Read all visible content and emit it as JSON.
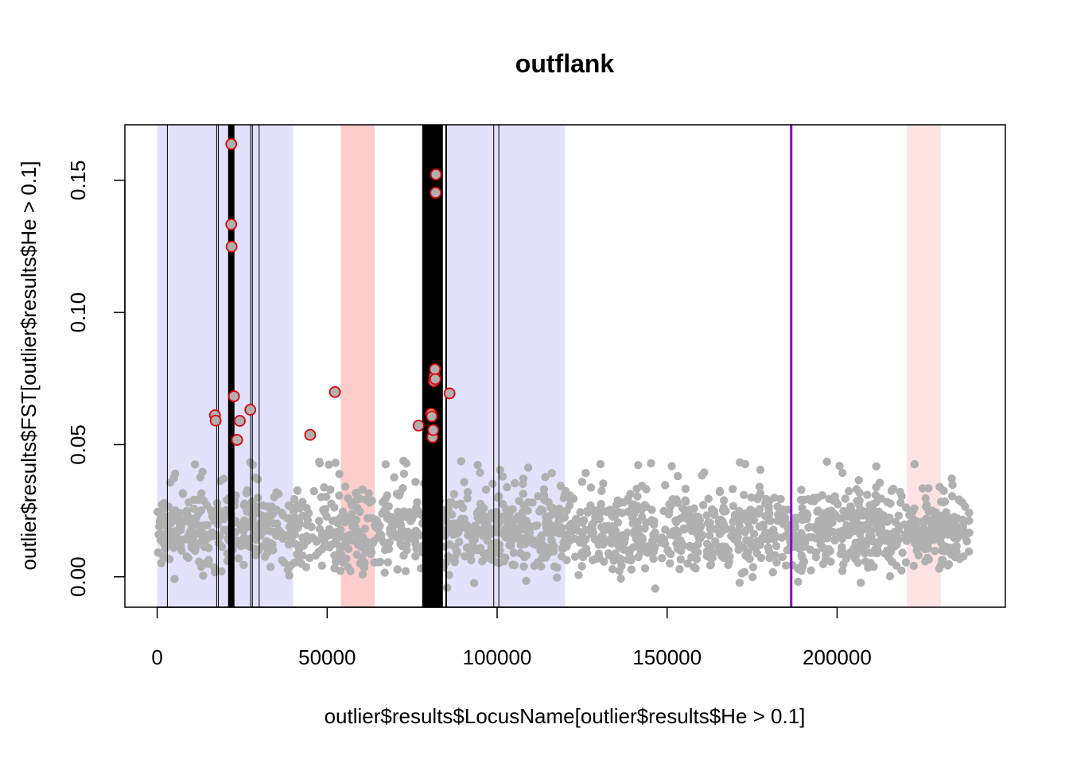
{
  "chart_data": {
    "type": "scatter",
    "title": "outflank",
    "xlabel": "outlier$results$LocusName[outlier$results$He > 0.1]",
    "ylabel": "outlier$results$FST[outlier$results$He > 0.1]",
    "xlim": [
      -9500,
      249500
    ],
    "ylim": [
      -0.0115,
      0.171
    ],
    "xticks": [
      0,
      50000,
      100000,
      150000,
      200000
    ],
    "xtick_labels": [
      "0",
      "50000",
      "100000",
      "150000",
      "200000"
    ],
    "yticks": [
      0.0,
      0.05,
      0.1,
      0.15
    ],
    "ytick_labels": [
      "0.00",
      "0.05",
      "0.10",
      "0.15"
    ],
    "grid": false,
    "colors": {
      "background_point": "#b0b0b0",
      "outlier_edge": "#e00000",
      "blue_band": "#e2e2fd",
      "red_band": "#ffcccc",
      "light_red_band": "#ffe2e2",
      "purple_line": "#8a00d4",
      "black_line": "#000000"
    },
    "shaded_regions": [
      {
        "x0": 0,
        "x1": 40000,
        "color": "blue_band"
      },
      {
        "x0": 85000,
        "x1": 120000,
        "color": "blue_band"
      },
      {
        "x0": 54000,
        "x1": 64000,
        "color": "red_band"
      },
      {
        "x0": 220500,
        "x1": 230500,
        "color": "light_red_band"
      }
    ],
    "vertical_lines": [
      {
        "x": 3000,
        "width": 1,
        "color": "black_line"
      },
      {
        "x": 17500,
        "width": 1,
        "color": "black_line"
      },
      {
        "x": 18000,
        "width": 1,
        "color": "black_line"
      },
      {
        "x": 21800,
        "width": 8,
        "color": "black_line"
      },
      {
        "x": 27500,
        "width": 1,
        "color": "black_line"
      },
      {
        "x": 28000,
        "width": 1,
        "color": "black_line"
      },
      {
        "x": 30000,
        "width": 1,
        "color": "black_line"
      },
      {
        "x": 81000,
        "width": 26,
        "color": "black_line"
      },
      {
        "x": 85000,
        "width": 2,
        "color": "black_line"
      },
      {
        "x": 99000,
        "width": 1,
        "color": "black_line"
      },
      {
        "x": 100500,
        "width": 1,
        "color": "black_line"
      },
      {
        "x": 186500,
        "width": 3,
        "color": "purple_line"
      }
    ],
    "background_series": {
      "name": "",
      "x_range": [
        0,
        239000
      ],
      "y_typical_range": [
        0.0,
        0.045
      ],
      "approx_count": 1800
    },
    "outliers": {
      "x": [
        17000,
        17200,
        21800,
        21800,
        21900,
        22600,
        23500,
        24300,
        27400,
        45000,
        52300,
        76900,
        80600,
        80800,
        81000,
        81200,
        81400,
        81600,
        81700,
        81800,
        81900,
        82000,
        86000
      ],
      "y": [
        0.0611,
        0.0591,
        0.1637,
        0.1333,
        0.1249,
        0.0683,
        0.0518,
        0.059,
        0.0632,
        0.0537,
        0.0699,
        0.0572,
        0.0617,
        0.0607,
        0.0528,
        0.0555,
        0.074,
        0.076,
        0.0785,
        0.0748,
        0.1453,
        0.1522,
        0.0694
      ]
    }
  }
}
